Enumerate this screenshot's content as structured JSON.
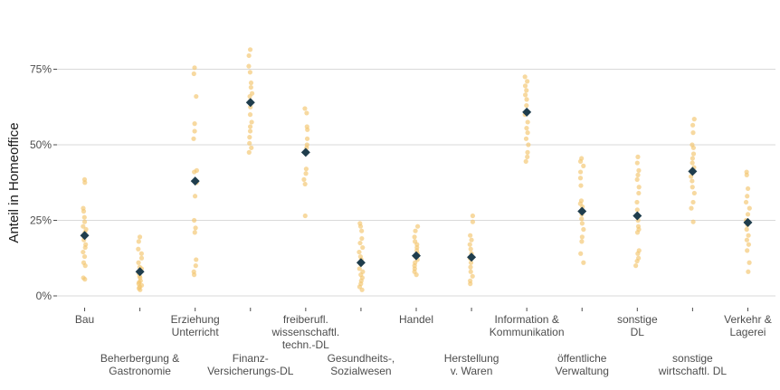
{
  "chart_data": {
    "type": "scatter",
    "title": "",
    "xlabel": "",
    "ylabel": "Anteil in Homeoffice",
    "ylim": [
      -0.02,
      0.87
    ],
    "yticks": [
      0,
      0.25,
      0.5,
      0.75
    ],
    "ytick_labels": [
      "0%",
      "25%",
      "50%",
      "75%"
    ],
    "grid": "horizontal",
    "legend": "none",
    "point_color": "#f2c46d",
    "mean_color": "#1f3d4d",
    "grid_color": "#d9d9d9",
    "categories": [
      {
        "label": "Bau",
        "mean": 0.2,
        "values": [
          0.385,
          0.375,
          0.29,
          0.28,
          0.26,
          0.245,
          0.23,
          0.22,
          0.21,
          0.195,
          0.185,
          0.17,
          0.16,
          0.145,
          0.13,
          0.11,
          0.1,
          0.06,
          0.055
        ]
      },
      {
        "label": "Beherbergung & Gastronomie",
        "mean": 0.08,
        "values": [
          0.195,
          0.18,
          0.155,
          0.14,
          0.125,
          0.11,
          0.095,
          0.09,
          0.075,
          0.065,
          0.06,
          0.05,
          0.045,
          0.04,
          0.035,
          0.03,
          0.025,
          0.02
        ]
      },
      {
        "label": "Erziehung Unterricht",
        "mean": 0.38,
        "values": [
          0.755,
          0.735,
          0.66,
          0.57,
          0.545,
          0.52,
          0.415,
          0.41,
          0.375,
          0.33,
          0.25,
          0.225,
          0.21,
          0.12,
          0.1,
          0.08,
          0.07
        ]
      },
      {
        "label": "Finanz- Versicherungs-DL",
        "mean": 0.64,
        "values": [
          0.815,
          0.795,
          0.76,
          0.74,
          0.705,
          0.69,
          0.67,
          0.66,
          0.645,
          0.625,
          0.6,
          0.575,
          0.56,
          0.545,
          0.525,
          0.505,
          0.49,
          0.475
        ]
      },
      {
        "label": "freiberufl. wissenschaftl. techn.-DL",
        "mean": 0.475,
        "values": [
          0.62,
          0.605,
          0.56,
          0.55,
          0.52,
          0.5,
          0.49,
          0.42,
          0.405,
          0.385,
          0.37,
          0.265
        ]
      },
      {
        "label": "Gesundheits-, Sozialwesen",
        "mean": 0.11,
        "values": [
          0.24,
          0.23,
          0.215,
          0.19,
          0.175,
          0.16,
          0.145,
          0.13,
          0.12,
          0.105,
          0.09,
          0.08,
          0.07,
          0.06,
          0.05,
          0.04,
          0.03,
          0.02
        ]
      },
      {
        "label": "Handel",
        "mean": 0.133,
        "values": [
          0.23,
          0.215,
          0.195,
          0.18,
          0.17,
          0.16,
          0.15,
          0.14,
          0.13,
          0.12,
          0.11,
          0.1,
          0.09,
          0.08,
          0.07
        ]
      },
      {
        "label": "Herstellung v. Waren",
        "mean": 0.128,
        "values": [
          0.265,
          0.245,
          0.2,
          0.185,
          0.17,
          0.155,
          0.14,
          0.125,
          0.11,
          0.095,
          0.08,
          0.065,
          0.05,
          0.04
        ]
      },
      {
        "label": "Information & Kommunikation",
        "mean": 0.608,
        "values": [
          0.725,
          0.71,
          0.695,
          0.68,
          0.665,
          0.65,
          0.63,
          0.6,
          0.575,
          0.555,
          0.54,
          0.52,
          0.5,
          0.475,
          0.46,
          0.445
        ]
      },
      {
        "label": "öffentliche Verwaltung",
        "mean": 0.28,
        "values": [
          0.455,
          0.445,
          0.43,
          0.41,
          0.39,
          0.365,
          0.315,
          0.305,
          0.295,
          0.27,
          0.255,
          0.24,
          0.22,
          0.195,
          0.18,
          0.14,
          0.11
        ]
      },
      {
        "label": "sonstige DL",
        "mean": 0.265,
        "values": [
          0.46,
          0.44,
          0.415,
          0.4,
          0.385,
          0.36,
          0.34,
          0.31,
          0.285,
          0.25,
          0.23,
          0.22,
          0.21,
          0.15,
          0.14,
          0.125,
          0.115,
          0.1
        ]
      },
      {
        "label": "sonstige wirtschaftl. DL",
        "mean": 0.412,
        "values": [
          0.585,
          0.565,
          0.54,
          0.5,
          0.49,
          0.47,
          0.455,
          0.44,
          0.425,
          0.41,
          0.395,
          0.38,
          0.36,
          0.34,
          0.31,
          0.29,
          0.245
        ]
      },
      {
        "label": "Verkehr & Lagerei",
        "mean": 0.243,
        "values": [
          0.41,
          0.4,
          0.355,
          0.33,
          0.31,
          0.29,
          0.27,
          0.25,
          0.235,
          0.22,
          0.2,
          0.185,
          0.17,
          0.15,
          0.11,
          0.08
        ]
      }
    ]
  }
}
